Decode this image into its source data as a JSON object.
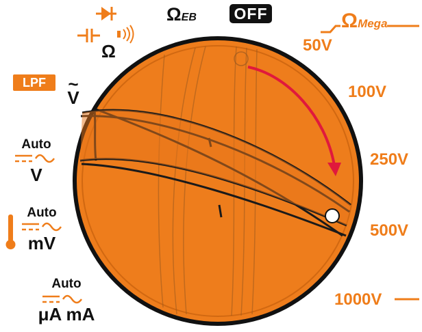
{
  "top": {
    "ohm_eb": "Ω",
    "ohm_eb_sub": "EB",
    "off": "OFF",
    "ohm_mega": "Ω",
    "ohm_mega_sub": "Mega",
    "diode_ohm": "Ω"
  },
  "left": {
    "lpf": "LPF",
    "ac_v_tilde": "~",
    "ac_v": "V",
    "auto_v_auto": "Auto",
    "auto_v_unit": "V",
    "auto_mv_auto": "Auto",
    "auto_mv_unit": "mV",
    "auto_ua_auto": "Auto",
    "auto_ua_unit": "μA mA"
  },
  "right": {
    "v50": "50V",
    "v100": "100V",
    "v250": "250V",
    "v500": "500V",
    "v1000": "1000V"
  },
  "colors": {
    "accent": "#ef7d1a",
    "dial": "#ee7d1c",
    "arrow": "#e0193c",
    "text_dark": "#111111"
  },
  "icons": [
    "diode-icon",
    "capacitor-icon",
    "continuity-beep-icon",
    "thermometer-icon",
    "rotation-arrow-icon"
  ]
}
